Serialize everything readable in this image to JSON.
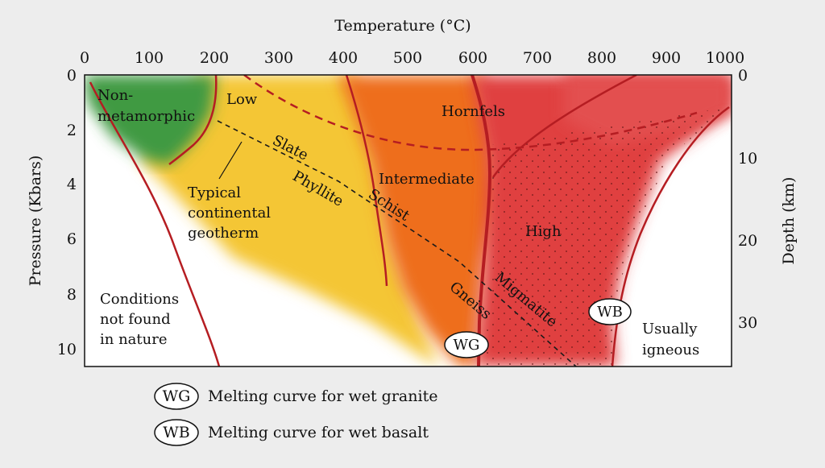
{
  "axes": {
    "top_title": "Temperature (°C)",
    "left_title": "Pressure (Kbars)",
    "right_title": "Depth (km)",
    "temperature_ticks": [
      "0",
      "100",
      "200",
      "300",
      "400",
      "500",
      "600",
      "700",
      "800",
      "900",
      "1000"
    ],
    "pressure_ticks": [
      "0",
      "2",
      "4",
      "6",
      "8",
      "10"
    ],
    "depth_ticks": [
      "0",
      "10",
      "20",
      "30"
    ]
  },
  "regions": {
    "nonmetamorphic_line1": "Non-",
    "nonmetamorphic_line2": "metamorphic",
    "low": "Low",
    "intermediate": "Intermediate",
    "high": "High",
    "hornfels": "Hornfels",
    "not_found_line1": "Conditions",
    "not_found_line2": "not found",
    "not_found_line3": "in nature",
    "igneous_line1": "Usually",
    "igneous_line2": "igneous"
  },
  "rocks": {
    "slate": "Slate",
    "phyllite": "Phyllite",
    "schist": "Schist",
    "gneiss": "Gneiss",
    "migmatite": "Migmatite"
  },
  "geotherm": {
    "line1": "Typical",
    "line2": "continental",
    "line3": "geotherm"
  },
  "markers": {
    "wg": "WG",
    "wb": "WB"
  },
  "legend": {
    "wg_text": "Melting curve for wet granite",
    "wb_text": "Melting curve for wet basalt"
  },
  "colors": {
    "green": "#3f9a43",
    "yellow": "#f3c332",
    "orange": "#ea6a1d",
    "red": "#dc3b3e",
    "curve": "#b51d22"
  }
}
